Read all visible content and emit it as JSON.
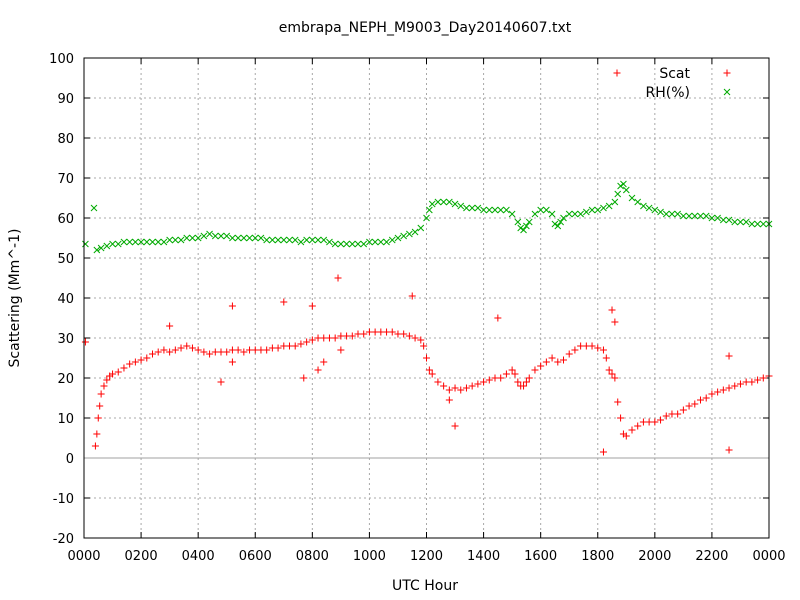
{
  "chart_data": {
    "type": "scatter",
    "title": "embrapa_NEPH_M9003_Day20140607.txt",
    "xlabel": "UTC Hour",
    "ylabel": "Scattering (Mm^-1)",
    "xlim": [
      0,
      24
    ],
    "ylim": [
      -20,
      100
    ],
    "x_tick_labels": [
      "0000",
      "0200",
      "0400",
      "0600",
      "0800",
      "1000",
      "1200",
      "1400",
      "1600",
      "1800",
      "2000",
      "2200",
      "0000"
    ],
    "y_ticks": [
      -20,
      -10,
      0,
      10,
      20,
      30,
      40,
      50,
      60,
      70,
      80,
      90,
      100
    ],
    "grid": true,
    "legend_position": "top-right",
    "series": [
      {
        "name": "Scat",
        "marker": "+",
        "color": "#ff0000",
        "points": [
          [
            0.05,
            29
          ],
          [
            0.4,
            3
          ],
          [
            0.45,
            6
          ],
          [
            0.5,
            10
          ],
          [
            0.55,
            13
          ],
          [
            0.6,
            16
          ],
          [
            0.7,
            18
          ],
          [
            0.8,
            19.5
          ],
          [
            0.9,
            20.5
          ],
          [
            1.0,
            21
          ],
          [
            1.2,
            21.5
          ],
          [
            1.4,
            22.5
          ],
          [
            1.6,
            23.5
          ],
          [
            1.8,
            24
          ],
          [
            2.0,
            24.5
          ],
          [
            2.2,
            25
          ],
          [
            2.4,
            26
          ],
          [
            2.6,
            26.5
          ],
          [
            2.8,
            27
          ],
          [
            3.0,
            26.5
          ],
          [
            3.2,
            27
          ],
          [
            3.4,
            27.5
          ],
          [
            3.6,
            28
          ],
          [
            3.8,
            27.5
          ],
          [
            4.0,
            27
          ],
          [
            4.2,
            26.5
          ],
          [
            4.4,
            26
          ],
          [
            4.6,
            26.5
          ],
          [
            4.8,
            26.5
          ],
          [
            5.0,
            26.5
          ],
          [
            5.2,
            27
          ],
          [
            5.4,
            27
          ],
          [
            5.6,
            26.5
          ],
          [
            5.8,
            27
          ],
          [
            6.0,
            27
          ],
          [
            6.2,
            27
          ],
          [
            6.4,
            27
          ],
          [
            6.6,
            27.5
          ],
          [
            6.8,
            27.5
          ],
          [
            7.0,
            28
          ],
          [
            7.2,
            28
          ],
          [
            7.4,
            28
          ],
          [
            7.6,
            28.5
          ],
          [
            7.8,
            29
          ],
          [
            8.0,
            29.5
          ],
          [
            8.2,
            30
          ],
          [
            8.4,
            30
          ],
          [
            8.6,
            30
          ],
          [
            8.8,
            30
          ],
          [
            9.0,
            30.5
          ],
          [
            9.2,
            30.5
          ],
          [
            9.4,
            30.5
          ],
          [
            9.6,
            31
          ],
          [
            9.8,
            31
          ],
          [
            10.0,
            31.5
          ],
          [
            10.2,
            31.5
          ],
          [
            10.4,
            31.5
          ],
          [
            10.6,
            31.5
          ],
          [
            10.8,
            31.5
          ],
          [
            11.0,
            31
          ],
          [
            11.2,
            31
          ],
          [
            11.4,
            30.5
          ],
          [
            11.6,
            30
          ],
          [
            11.8,
            29.5
          ],
          [
            11.9,
            28
          ],
          [
            12.0,
            25
          ],
          [
            12.1,
            22
          ],
          [
            12.2,
            21
          ],
          [
            12.4,
            19
          ],
          [
            12.6,
            18
          ],
          [
            12.8,
            17
          ],
          [
            13.0,
            17.5
          ],
          [
            13.2,
            17
          ],
          [
            13.4,
            17.5
          ],
          [
            13.6,
            18
          ],
          [
            13.8,
            18.5
          ],
          [
            14.0,
            19
          ],
          [
            14.2,
            19.5
          ],
          [
            14.4,
            20
          ],
          [
            14.6,
            20
          ],
          [
            14.8,
            21
          ],
          [
            15.0,
            22
          ],
          [
            15.1,
            21
          ],
          [
            15.2,
            19
          ],
          [
            15.3,
            18
          ],
          [
            15.4,
            18
          ],
          [
            15.5,
            19
          ],
          [
            15.6,
            20
          ],
          [
            15.8,
            22
          ],
          [
            16.0,
            23
          ],
          [
            16.2,
            24
          ],
          [
            16.4,
            25
          ],
          [
            16.6,
            24
          ],
          [
            16.8,
            24.5
          ],
          [
            17.0,
            26
          ],
          [
            17.2,
            27
          ],
          [
            17.4,
            28
          ],
          [
            17.6,
            28
          ],
          [
            17.8,
            28
          ],
          [
            18.0,
            27.5
          ],
          [
            18.2,
            27
          ],
          [
            18.3,
            25
          ],
          [
            18.4,
            22
          ],
          [
            18.5,
            21
          ],
          [
            18.6,
            20
          ],
          [
            18.7,
            14
          ],
          [
            18.8,
            10
          ],
          [
            18.9,
            6
          ],
          [
            19.0,
            5.5
          ],
          [
            19.2,
            7
          ],
          [
            19.4,
            8
          ],
          [
            19.6,
            9
          ],
          [
            19.8,
            9
          ],
          [
            20.0,
            9
          ],
          [
            20.2,
            9.5
          ],
          [
            20.4,
            10.5
          ],
          [
            20.6,
            11
          ],
          [
            20.8,
            11
          ],
          [
            21.0,
            12
          ],
          [
            21.2,
            13
          ],
          [
            21.4,
            13.5
          ],
          [
            21.6,
            14.5
          ],
          [
            21.8,
            15
          ],
          [
            22.0,
            16
          ],
          [
            22.2,
            16.5
          ],
          [
            22.4,
            17
          ],
          [
            22.6,
            17.5
          ],
          [
            22.8,
            18
          ],
          [
            23.0,
            18.5
          ],
          [
            23.2,
            19
          ],
          [
            23.4,
            19
          ],
          [
            23.6,
            19.5
          ],
          [
            23.8,
            20
          ],
          [
            24.0,
            20.5
          ],
          [
            3.0,
            33
          ],
          [
            5.2,
            38
          ],
          [
            7.0,
            39
          ],
          [
            8.0,
            38
          ],
          [
            8.9,
            45
          ],
          [
            11.5,
            40.5
          ],
          [
            14.5,
            35
          ],
          [
            18.5,
            37
          ],
          [
            18.6,
            34
          ],
          [
            22.6,
            25.5
          ],
          [
            22.6,
            2
          ],
          [
            18.2,
            1.5
          ],
          [
            13.0,
            8
          ],
          [
            12.8,
            14.5
          ],
          [
            9.0,
            27
          ],
          [
            8.4,
            24
          ],
          [
            8.2,
            22
          ],
          [
            7.7,
            20
          ],
          [
            5.2,
            24
          ],
          [
            4.8,
            19
          ]
        ]
      },
      {
        "name": "RH(%)",
        "marker": "x",
        "color": "#00aa00",
        "points": [
          [
            0.05,
            53.5
          ],
          [
            0.35,
            62.5
          ],
          [
            0.45,
            52
          ],
          [
            0.6,
            52.5
          ],
          [
            0.8,
            53
          ],
          [
            1.0,
            53.5
          ],
          [
            1.2,
            53.5
          ],
          [
            1.4,
            54
          ],
          [
            1.6,
            54
          ],
          [
            1.8,
            54
          ],
          [
            2.0,
            54
          ],
          [
            2.2,
            54
          ],
          [
            2.4,
            54
          ],
          [
            2.6,
            54
          ],
          [
            2.8,
            54
          ],
          [
            3.0,
            54.5
          ],
          [
            3.2,
            54.5
          ],
          [
            3.4,
            54.5
          ],
          [
            3.6,
            55
          ],
          [
            3.8,
            55
          ],
          [
            4.0,
            55
          ],
          [
            4.2,
            55.5
          ],
          [
            4.4,
            56
          ],
          [
            4.6,
            55.5
          ],
          [
            4.8,
            55.5
          ],
          [
            5.0,
            55.5
          ],
          [
            5.2,
            55
          ],
          [
            5.4,
            55
          ],
          [
            5.6,
            55
          ],
          [
            5.8,
            55
          ],
          [
            6.0,
            55
          ],
          [
            6.2,
            55
          ],
          [
            6.4,
            54.5
          ],
          [
            6.6,
            54.5
          ],
          [
            6.8,
            54.5
          ],
          [
            7.0,
            54.5
          ],
          [
            7.2,
            54.5
          ],
          [
            7.4,
            54.5
          ],
          [
            7.6,
            54
          ],
          [
            7.8,
            54.5
          ],
          [
            8.0,
            54.5
          ],
          [
            8.2,
            54.5
          ],
          [
            8.4,
            54.5
          ],
          [
            8.6,
            54
          ],
          [
            8.8,
            53.5
          ],
          [
            9.0,
            53.5
          ],
          [
            9.2,
            53.5
          ],
          [
            9.4,
            53.5
          ],
          [
            9.6,
            53.5
          ],
          [
            9.8,
            53.5
          ],
          [
            10.0,
            54
          ],
          [
            10.2,
            54
          ],
          [
            10.4,
            54
          ],
          [
            10.6,
            54
          ],
          [
            10.8,
            54.5
          ],
          [
            11.0,
            55
          ],
          [
            11.2,
            55.5
          ],
          [
            11.4,
            56
          ],
          [
            11.6,
            56.5
          ],
          [
            11.8,
            57.5
          ],
          [
            12.0,
            60
          ],
          [
            12.1,
            62
          ],
          [
            12.2,
            63.5
          ],
          [
            12.4,
            64
          ],
          [
            12.6,
            64
          ],
          [
            12.8,
            64
          ],
          [
            13.0,
            63.5
          ],
          [
            13.2,
            63
          ],
          [
            13.4,
            62.5
          ],
          [
            13.6,
            62.5
          ],
          [
            13.8,
            62.5
          ],
          [
            14.0,
            62
          ],
          [
            14.2,
            62
          ],
          [
            14.4,
            62
          ],
          [
            14.6,
            62
          ],
          [
            14.8,
            62
          ],
          [
            15.0,
            61
          ],
          [
            15.2,
            59
          ],
          [
            15.3,
            57.5
          ],
          [
            15.4,
            57
          ],
          [
            15.5,
            58
          ],
          [
            15.6,
            59
          ],
          [
            15.8,
            61
          ],
          [
            16.0,
            62
          ],
          [
            16.2,
            62
          ],
          [
            16.4,
            61
          ],
          [
            16.5,
            58.5
          ],
          [
            16.6,
            58
          ],
          [
            16.7,
            59
          ],
          [
            16.8,
            60
          ],
          [
            17.0,
            61
          ],
          [
            17.2,
            61
          ],
          [
            17.4,
            61
          ],
          [
            17.6,
            61.5
          ],
          [
            17.8,
            62
          ],
          [
            18.0,
            62
          ],
          [
            18.2,
            62.5
          ],
          [
            18.4,
            63
          ],
          [
            18.6,
            64
          ],
          [
            18.7,
            66
          ],
          [
            18.8,
            68
          ],
          [
            18.9,
            68.5
          ],
          [
            19.0,
            67
          ],
          [
            19.2,
            65
          ],
          [
            19.4,
            64
          ],
          [
            19.6,
            63
          ],
          [
            19.8,
            62.5
          ],
          [
            20.0,
            62
          ],
          [
            20.2,
            61.5
          ],
          [
            20.4,
            61
          ],
          [
            20.6,
            61
          ],
          [
            20.8,
            61
          ],
          [
            21.0,
            60.5
          ],
          [
            21.2,
            60.5
          ],
          [
            21.4,
            60.5
          ],
          [
            21.6,
            60.5
          ],
          [
            21.8,
            60.5
          ],
          [
            22.0,
            60
          ],
          [
            22.2,
            60
          ],
          [
            22.4,
            59.5
          ],
          [
            22.6,
            59.5
          ],
          [
            22.8,
            59
          ],
          [
            23.0,
            59
          ],
          [
            23.2,
            59
          ],
          [
            23.4,
            58.5
          ],
          [
            23.6,
            58.5
          ],
          [
            23.8,
            58.5
          ],
          [
            24.0,
            58.5
          ]
        ]
      }
    ]
  }
}
